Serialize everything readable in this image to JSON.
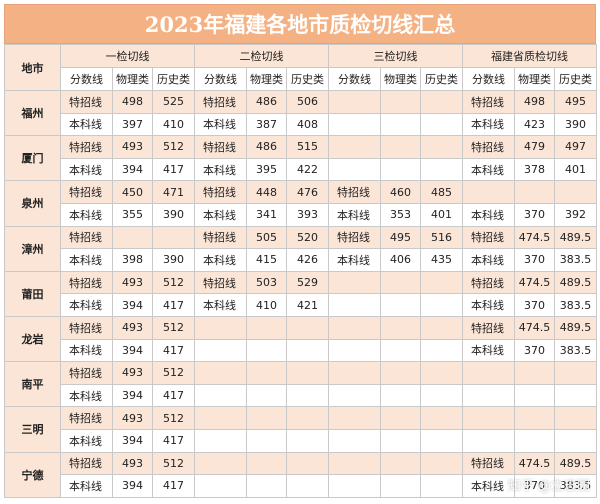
{
  "title": "2023年福建各地市质检切线汇总",
  "header": {
    "city": "地市",
    "groups": [
      "一检切线",
      "二检切线",
      "三检切线",
      "福建省质检切线"
    ],
    "sub": [
      "分数线",
      "物理类",
      "历史类"
    ]
  },
  "rows": [
    {
      "city": "福州",
      "lines": [
        {
          "c": [
            [
              "特招线",
              "498",
              "525"
            ],
            [
              "特招线",
              "486",
              "506"
            ],
            [
              "",
              "",
              ""
            ],
            [
              "特招线",
              "498",
              "495"
            ]
          ]
        },
        {
          "c": [
            [
              "本科线",
              "397",
              "410"
            ],
            [
              "本科线",
              "387",
              "408"
            ],
            [
              "",
              "",
              ""
            ],
            [
              "本科线",
              "423",
              "390"
            ]
          ]
        }
      ]
    },
    {
      "city": "厦门",
      "lines": [
        {
          "c": [
            [
              "特招线",
              "493",
              "512"
            ],
            [
              "特招线",
              "486",
              "515"
            ],
            [
              "",
              "",
              ""
            ],
            [
              "特招线",
              "479",
              "497"
            ]
          ]
        },
        {
          "c": [
            [
              "本科线",
              "394",
              "417"
            ],
            [
              "本科线",
              "395",
              "422"
            ],
            [
              "",
              "",
              ""
            ],
            [
              "本科线",
              "378",
              "401"
            ]
          ]
        }
      ]
    },
    {
      "city": "泉州",
      "lines": [
        {
          "c": [
            [
              "特招线",
              "450",
              "471"
            ],
            [
              "特招线",
              "448",
              "476"
            ],
            [
              "特招线",
              "460",
              "485"
            ],
            [
              "",
              "",
              ""
            ]
          ]
        },
        {
          "c": [
            [
              "本科线",
              "355",
              "390"
            ],
            [
              "本科线",
              "341",
              "393"
            ],
            [
              "本科线",
              "353",
              "401"
            ],
            [
              "本科线",
              "370",
              "392"
            ]
          ]
        }
      ]
    },
    {
      "city": "漳州",
      "lines": [
        {
          "c": [
            [
              "特招线",
              "",
              ""
            ],
            [
              "特招线",
              "505",
              "520"
            ],
            [
              "特招线",
              "495",
              "516"
            ],
            [
              "特招线",
              "474.5",
              "489.5"
            ]
          ]
        },
        {
          "c": [
            [
              "本科线",
              "398",
              "390"
            ],
            [
              "本科线",
              "415",
              "426"
            ],
            [
              "本科线",
              "406",
              "435"
            ],
            [
              "本科线",
              "370",
              "383.5"
            ]
          ]
        }
      ]
    },
    {
      "city": "莆田",
      "lines": [
        {
          "c": [
            [
              "特招线",
              "493",
              "512"
            ],
            [
              "特招线",
              "503",
              "529"
            ],
            [
              "",
              "",
              ""
            ],
            [
              "特招线",
              "474.5",
              "489.5"
            ]
          ]
        },
        {
          "c": [
            [
              "本科线",
              "394",
              "417"
            ],
            [
              "本科线",
              "410",
              "421"
            ],
            [
              "",
              "",
              ""
            ],
            [
              "本科线",
              "370",
              "383.5"
            ]
          ]
        }
      ]
    },
    {
      "city": "龙岩",
      "lines": [
        {
          "c": [
            [
              "特招线",
              "493",
              "512"
            ],
            [
              "",
              "",
              ""
            ],
            [
              "",
              "",
              ""
            ],
            [
              "特招线",
              "474.5",
              "489.5"
            ]
          ]
        },
        {
          "c": [
            [
              "本科线",
              "394",
              "417"
            ],
            [
              "",
              "",
              ""
            ],
            [
              "",
              "",
              ""
            ],
            [
              "本科线",
              "370",
              "383.5"
            ]
          ]
        }
      ]
    },
    {
      "city": "南平",
      "lines": [
        {
          "c": [
            [
              "特招线",
              "493",
              "512"
            ],
            [
              "",
              "",
              ""
            ],
            [
              "",
              "",
              ""
            ],
            [
              "",
              "",
              ""
            ]
          ]
        },
        {
          "c": [
            [
              "本科线",
              "394",
              "417"
            ],
            [
              "",
              "",
              ""
            ],
            [
              "",
              "",
              ""
            ],
            [
              "",
              "",
              ""
            ]
          ]
        }
      ]
    },
    {
      "city": "三明",
      "lines": [
        {
          "c": [
            [
              "特招线",
              "493",
              "512"
            ],
            [
              "",
              "",
              ""
            ],
            [
              "",
              "",
              ""
            ],
            [
              "",
              "",
              ""
            ]
          ]
        },
        {
          "c": [
            [
              "本科线",
              "394",
              "417"
            ],
            [
              "",
              "",
              ""
            ],
            [
              "",
              "",
              ""
            ],
            [
              "",
              "",
              ""
            ]
          ]
        }
      ]
    },
    {
      "city": "宁德",
      "lines": [
        {
          "c": [
            [
              "特招线",
              "493",
              "512"
            ],
            [
              "",
              "",
              ""
            ],
            [
              "",
              "",
              ""
            ],
            [
              "特招线",
              "474.5",
              "489.5"
            ]
          ]
        },
        {
          "c": [
            [
              "本科线",
              "394",
              "417"
            ],
            [
              "",
              "",
              ""
            ],
            [
              "",
              "",
              ""
            ],
            [
              "本科线",
              "370",
              "383.5"
            ]
          ]
        }
      ]
    }
  ],
  "watermark": "知乎 @立志园",
  "colors": {
    "header": "#f4b183",
    "shade": "#fbe5d6",
    "border": "#c9c9c9"
  }
}
